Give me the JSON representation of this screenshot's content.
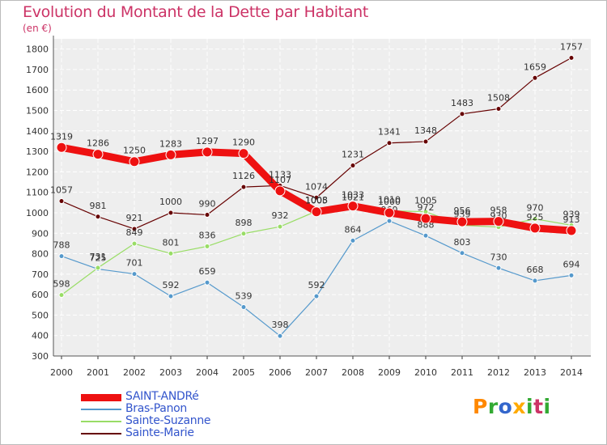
{
  "title": "Evolution du Montant de la Dette par Habitant",
  "subtitle": "(en €)",
  "brand": {
    "letters": [
      "P",
      "r",
      "o",
      "x",
      "i",
      "t",
      "i"
    ],
    "colors": [
      "#ff8800",
      "#33aa33",
      "#3366cc",
      "#ffaa00",
      "#33aa33",
      "#cc3366",
      "#33aa33"
    ]
  },
  "chart_data": {
    "type": "line",
    "title": "Evolution du Montant de la Dette par Habitant",
    "subtitle": "(en €)",
    "xlabel": "",
    "ylabel": "",
    "x": [
      2000,
      2001,
      2002,
      2003,
      2004,
      2005,
      2006,
      2007,
      2008,
      2009,
      2010,
      2011,
      2012,
      2013,
      2014
    ],
    "ylim": [
      300,
      1850
    ],
    "yticks": [
      300,
      400,
      500,
      600,
      700,
      800,
      900,
      1000,
      1100,
      1200,
      1300,
      1400,
      1500,
      1600,
      1700,
      1800
    ],
    "grid": true,
    "legend_position": "bottom-left",
    "series": [
      {
        "name": "Sainte-Marie",
        "color": "#660000",
        "values": [
          1057,
          981,
          921,
          1000,
          990,
          1126,
          1133,
          1074,
          1231,
          1341,
          1348,
          1483,
          1508,
          1659,
          1757
        ]
      },
      {
        "name": "Bras-Panon",
        "color": "#5599cc",
        "values": [
          788,
          725,
          701,
          592,
          659,
          539,
          398,
          592,
          864,
          960,
          888,
          803,
          730,
          668,
          694
        ]
      },
      {
        "name": "Sainte-Suzanne",
        "color": "#99dd66",
        "values": [
          598,
          731,
          849,
          801,
          836,
          898,
          932,
          1008,
          1021,
          1010,
          1005,
          939,
          930,
          970,
          939
        ]
      },
      {
        "name": "SAINT-ANDRé",
        "color": "#ee1111",
        "values": [
          1319,
          1286,
          1250,
          1283,
          1297,
          1290,
          1107,
          1005,
          1033,
          1000,
          972,
          956,
          958,
          925,
          913
        ]
      }
    ]
  }
}
